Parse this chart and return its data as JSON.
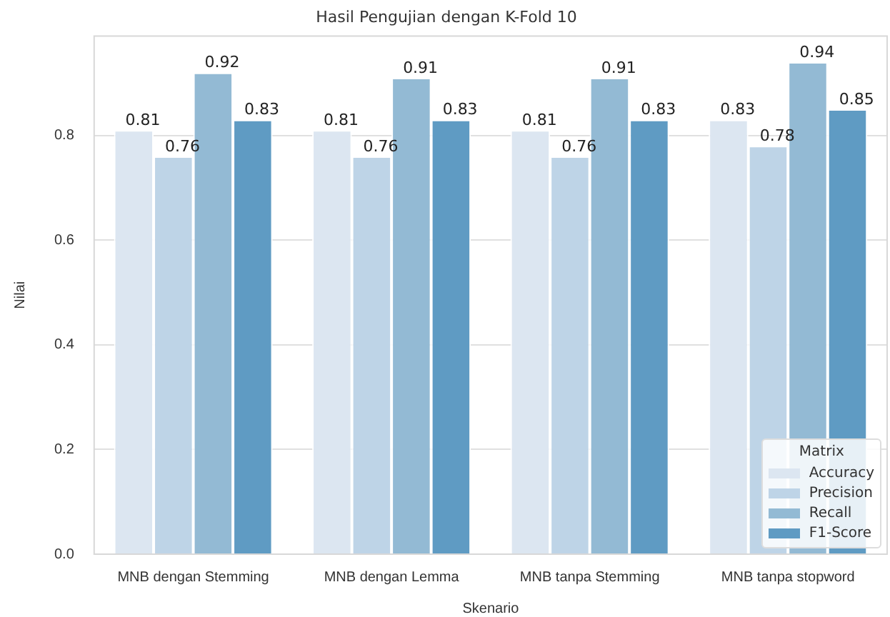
{
  "chart_data": {
    "type": "bar",
    "title": "Hasil Pengujian dengan K-Fold 10",
    "xlabel": "Skenario",
    "ylabel": "Nilai",
    "legend_title": "Matrix",
    "categories": [
      "MNB dengan Stemming",
      "MNB dengan Lemma",
      "MNB tanpa Stemming",
      "MNB tanpa stopword"
    ],
    "series": [
      {
        "name": "Accuracy",
        "color": "#dce6f1",
        "values": [
          0.81,
          0.81,
          0.81,
          0.83
        ]
      },
      {
        "name": "Precision",
        "color": "#bed4e7",
        "values": [
          0.76,
          0.76,
          0.76,
          0.78
        ]
      },
      {
        "name": "Recall",
        "color": "#93bad4",
        "values": [
          0.92,
          0.91,
          0.91,
          0.94
        ]
      },
      {
        "name": "F1-Score",
        "color": "#5f9bc3",
        "values": [
          0.83,
          0.83,
          0.83,
          0.85
        ]
      }
    ],
    "ylim": [
      0,
      0.99
    ],
    "yticks": [
      {
        "value": 0,
        "label": "0.0"
      },
      0.2,
      0.4,
      0.6,
      0.8
    ],
    "grid": "y",
    "legend": "bottom right",
    "data_labels": true
  }
}
